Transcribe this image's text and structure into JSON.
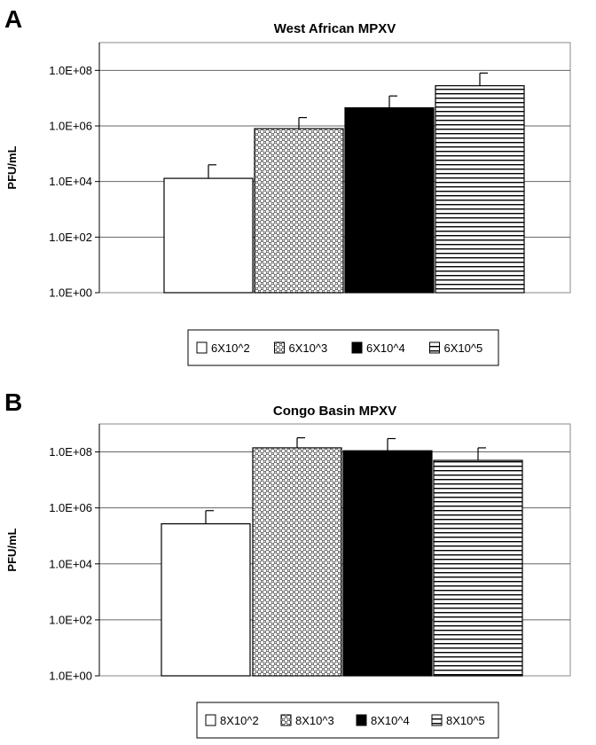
{
  "chart_data": [
    {
      "panel": "A",
      "type": "bar",
      "title": "West African MPXV",
      "xlabel": "",
      "ylabel": "PFU/mL",
      "y_scale": "log10",
      "ylim": [
        1,
        1000000000
      ],
      "y_ticks": [
        "1.0E+00",
        "1.0E+02",
        "1.0E+04",
        "1.0E+06",
        "1.0E+08"
      ],
      "grid": "horizontal",
      "legend_position": "bottom",
      "series": [
        {
          "name": "6X10^2",
          "value": 13000,
          "error_upper": 40000,
          "pattern": "white"
        },
        {
          "name": "6X10^3",
          "value": 800000,
          "error_upper": 2000000,
          "pattern": "crosshatch"
        },
        {
          "name": "6X10^4",
          "value": 4500000,
          "error_upper": 12000000,
          "pattern": "black"
        },
        {
          "name": "6X10^5",
          "value": 28000000,
          "error_upper": 80000000,
          "pattern": "horizontal-lines"
        }
      ]
    },
    {
      "panel": "B",
      "type": "bar",
      "title": "Congo Basin MPXV",
      "xlabel": "",
      "ylabel": "PFU/mL",
      "y_scale": "log10",
      "ylim": [
        1,
        1000000000
      ],
      "y_ticks": [
        "1.0E+00",
        "1.0E+02",
        "1.0E+04",
        "1.0E+06",
        "1.0E+08"
      ],
      "grid": "horizontal",
      "legend_position": "bottom",
      "series": [
        {
          "name": "8X10^2",
          "value": 270000,
          "error_upper": 800000,
          "pattern": "white"
        },
        {
          "name": "8X10^3",
          "value": 140000000,
          "error_upper": 320000000,
          "pattern": "crosshatch"
        },
        {
          "name": "8X10^4",
          "value": 110000000,
          "error_upper": 300000000,
          "pattern": "black"
        },
        {
          "name": "8X10^5",
          "value": 50000000,
          "error_upper": 140000000,
          "pattern": "horizontal-lines"
        }
      ]
    }
  ]
}
